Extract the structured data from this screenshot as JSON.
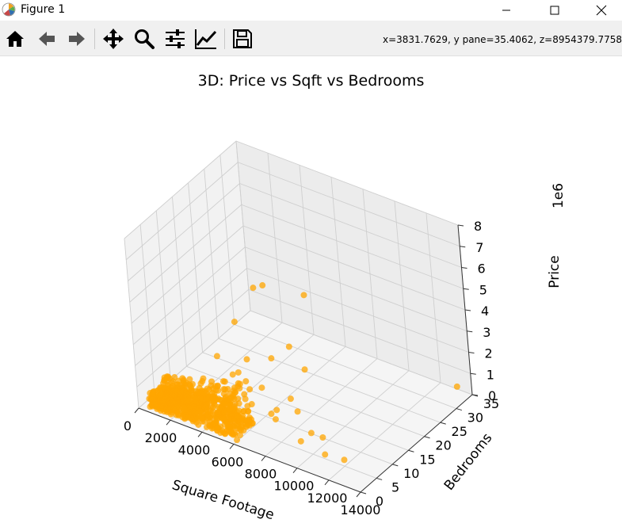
{
  "window": {
    "title": "Figure 1"
  },
  "toolbar": {
    "buttons": [
      {
        "name": "home",
        "icon": "home-icon"
      },
      {
        "name": "back",
        "icon": "arrow-left-icon"
      },
      {
        "name": "forward",
        "icon": "arrow-right-icon"
      },
      {
        "name": "pan",
        "icon": "move-icon"
      },
      {
        "name": "zoom",
        "icon": "magnifier-icon"
      },
      {
        "name": "subplots",
        "icon": "sliders-icon"
      },
      {
        "name": "edit-axes",
        "icon": "chart-line-icon"
      },
      {
        "name": "save",
        "icon": "floppy-disk-icon"
      }
    ],
    "coords": "x=3831.7629, y pane=35.4062, z=8954379.7758"
  },
  "chart_data": {
    "type": "scatter",
    "title": "3D: Price vs Sqft vs Bedrooms",
    "xlabel": "Square Footage",
    "ylabel": "Bedrooms",
    "zlabel": "Price",
    "z_offset_label": "1e6",
    "xticks": [
      "0",
      "2000",
      "4000",
      "6000",
      "8000",
      "10000",
      "12000",
      "14000"
    ],
    "yticks": [
      "0",
      "5",
      "10",
      "15",
      "20",
      "25",
      "30",
      "35"
    ],
    "zticks": [
      "0",
      "1",
      "2",
      "3",
      "4",
      "5",
      "6",
      "7",
      "8"
    ],
    "xlim": [
      0,
      14000
    ],
    "ylim": [
      0,
      35
    ],
    "zlim": [
      0,
      8
    ],
    "marker_color": "#ffa500",
    "points": [
      {
        "x": 7000,
        "y": 5,
        "z": 7.0
      },
      {
        "x": 9600,
        "y": 8,
        "z": 7.0
      },
      {
        "x": 7400,
        "y": 6,
        "z": 7.1
      },
      {
        "x": 8800,
        "y": 6,
        "z": 4.6
      },
      {
        "x": 5600,
        "y": 5,
        "z": 5.0
      },
      {
        "x": 7800,
        "y": 5,
        "z": 3.9
      },
      {
        "x": 8800,
        "y": 10,
        "z": 3.0
      },
      {
        "x": 4500,
        "y": 4,
        "z": 3.2
      },
      {
        "x": 6200,
        "y": 5,
        "z": 3.4
      },
      {
        "x": 5800,
        "y": 4,
        "z": 2.8
      },
      {
        "x": 5200,
        "y": 5,
        "z": 2.4
      },
      {
        "x": 6800,
        "y": 6,
        "z": 2.1
      },
      {
        "x": 8400,
        "y": 7,
        "z": 1.9
      },
      {
        "x": 9000,
        "y": 6,
        "z": 1.6
      },
      {
        "x": 6500,
        "y": 4,
        "z": 1.5
      },
      {
        "x": 7500,
        "y": 5,
        "z": 1.2
      },
      {
        "x": 10000,
        "y": 5,
        "z": 1.0
      },
      {
        "x": 8200,
        "y": 3,
        "z": 1.4
      },
      {
        "x": 9500,
        "y": 4,
        "z": 0.6
      },
      {
        "x": 11000,
        "y": 4,
        "z": 0.4
      },
      {
        "x": 10500,
        "y": 6,
        "z": 0.8
      },
      {
        "x": 13500,
        "y": 33,
        "z": 0.5
      },
      {
        "x": 12000,
        "y": 5,
        "z": 0.3
      },
      {
        "x": 7200,
        "y": 8,
        "z": 0.9
      },
      {
        "x": 6000,
        "y": 6,
        "z": 1.8
      },
      {
        "x": 4800,
        "y": 5,
        "z": 1.6
      }
    ],
    "cluster": {
      "note": "dense cluster of points",
      "x_range": [
        500,
        6000
      ],
      "y_range": [
        1,
        7
      ],
      "z_range": [
        0.05,
        1.6
      ]
    }
  }
}
